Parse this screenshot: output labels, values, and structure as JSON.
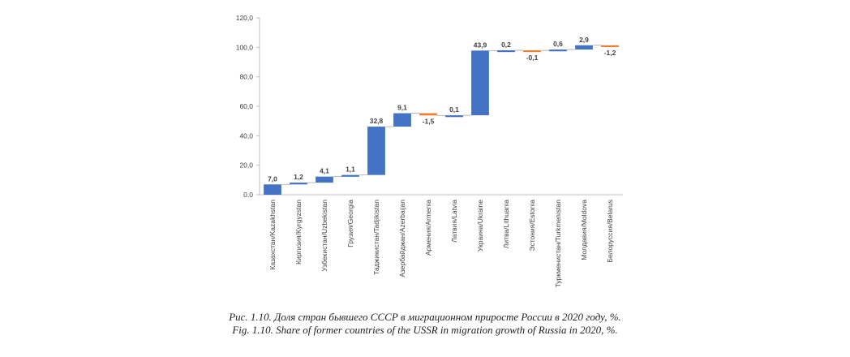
{
  "chart_data": {
    "type": "bar",
    "subtype": "waterfall",
    "categories": [
      "Казахстан/Kazakhstan",
      "Киргизия/Kyrgyzstan",
      "Узбекистан/Uzbekistan",
      "Грузия/Georgia",
      "Таджикистан/Tadjikistan",
      "Азербайджан/Azerbaijan",
      "Армения/Armenia",
      "Латвия/Latvia",
      "Украина/Ukraine",
      "Литва/Lithuania",
      "Эстония/Estonia",
      "Туркменистан/Turkmenistan",
      "Молдавия/Moldova",
      "Белоруссия/Belarus"
    ],
    "values": [
      7.0,
      1.2,
      4.1,
      1.1,
      32.8,
      9.1,
      -1.5,
      0.1,
      43.9,
      0.2,
      -0.1,
      0.6,
      2.9,
      -1.2
    ],
    "value_labels": [
      "7,0",
      "1,2",
      "4,1",
      "1,1",
      "32,8",
      "9,1",
      "-1,5",
      "0,1",
      "43,9",
      "0,2",
      "-0,1",
      "0,6",
      "2,9",
      "-1,2"
    ],
    "ylim": [
      0,
      120
    ],
    "yticks": [
      "0,0",
      "20,0",
      "40,0",
      "60,0",
      "80,0",
      "100,0",
      "120,0"
    ],
    "grid": false,
    "legend": "none",
    "colors": {
      "increase": "#4472c4",
      "decrease": "#ed7d31",
      "connector": "#a6a6a6",
      "axis": "#bfbfbf"
    }
  },
  "caption": {
    "ru": "Рис. 1.10. Доля стран бывшего СССР в миграционном приросте России в 2020 году, %.",
    "en": "Fig. 1.10. Share of former countries of the USSR in migration growth of Russia in 2020, %."
  }
}
